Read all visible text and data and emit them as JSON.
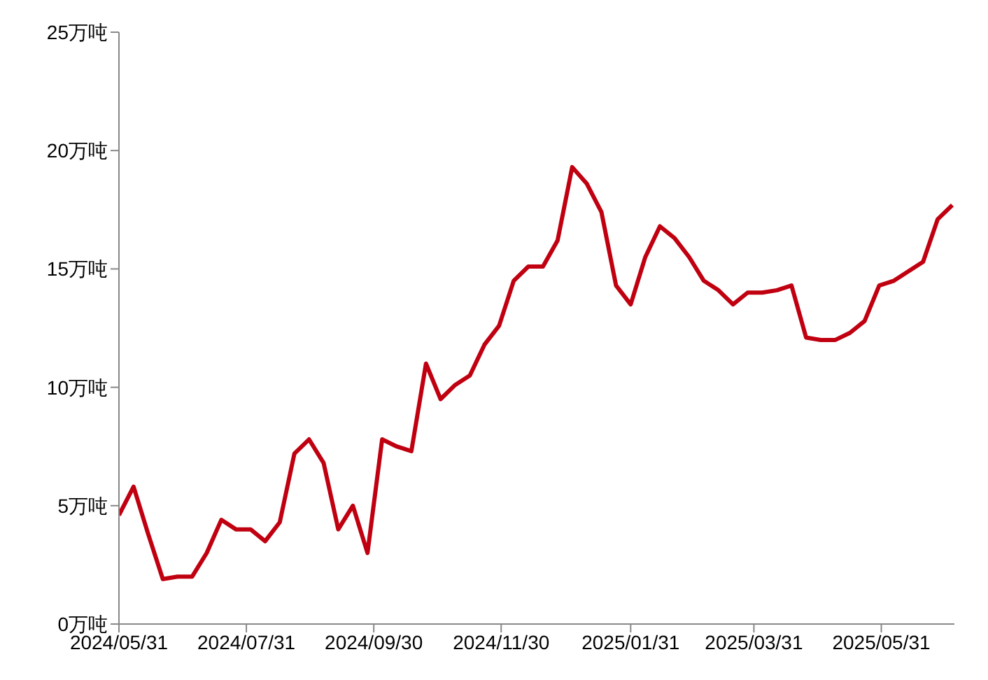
{
  "chart_data": {
    "type": "line",
    "x": [
      "2024-05-31",
      "2024-06-07",
      "2024-06-14",
      "2024-06-21",
      "2024-06-28",
      "2024-07-05",
      "2024-07-12",
      "2024-07-19",
      "2024-07-26",
      "2024-08-02",
      "2024-08-09",
      "2024-08-16",
      "2024-08-23",
      "2024-08-30",
      "2024-09-06",
      "2024-09-13",
      "2024-09-20",
      "2024-09-27",
      "2024-10-04",
      "2024-10-11",
      "2024-10-18",
      "2024-10-25",
      "2024-11-01",
      "2024-11-08",
      "2024-11-15",
      "2024-11-22",
      "2024-11-29",
      "2024-12-06",
      "2024-12-13",
      "2024-12-20",
      "2024-12-27",
      "2025-01-03",
      "2025-01-10",
      "2025-01-17",
      "2025-01-24",
      "2025-01-31",
      "2025-02-07",
      "2025-02-14",
      "2025-02-21",
      "2025-02-28",
      "2025-03-07",
      "2025-03-14",
      "2025-03-21",
      "2025-03-28",
      "2025-04-04",
      "2025-04-11",
      "2025-04-18",
      "2025-04-25",
      "2025-05-02",
      "2025-05-09",
      "2025-05-16",
      "2025-05-23",
      "2025-05-30",
      "2025-06-06",
      "2025-06-13",
      "2025-06-20",
      "2025-06-27",
      "2025-07-04"
    ],
    "series": [
      {
        "color": "#c00010",
        "values": [
          4.6,
          5.8,
          3.8,
          1.9,
          2.0,
          2.0,
          3.0,
          4.4,
          4.0,
          4.0,
          3.5,
          4.3,
          7.2,
          7.8,
          6.8,
          4.0,
          5.0,
          3.0,
          7.8,
          7.5,
          7.3,
          11.0,
          9.5,
          10.1,
          10.5,
          11.8,
          12.6,
          14.5,
          15.1,
          15.1,
          16.2,
          19.3,
          18.6,
          17.4,
          14.3,
          13.5,
          15.5,
          16.8,
          16.3,
          15.5,
          14.5,
          14.1,
          13.5,
          14.0,
          14.0,
          14.1,
          14.3,
          12.1,
          12.0,
          12.0,
          12.3,
          12.8,
          14.3,
          14.5,
          14.9,
          15.3,
          17.1,
          17.7
        ]
      }
    ],
    "xlim": [
      "2024-05-31",
      "2025-07-05"
    ],
    "xticks": [
      {
        "value": "2024-05-31",
        "label": "2024/05/31"
      },
      {
        "value": "2024-07-31",
        "label": "2024/07/31"
      },
      {
        "value": "2024-09-30",
        "label": "2024/09/30"
      },
      {
        "value": "2024-11-30",
        "label": "2024/11/30"
      },
      {
        "value": "2025-01-31",
        "label": "2025/01/31"
      },
      {
        "value": "2025-03-31",
        "label": "2025/03/31"
      },
      {
        "value": "2025-05-31",
        "label": "2025/05/31"
      }
    ],
    "ylim": [
      0,
      25
    ],
    "yticks": [
      {
        "value": 0,
        "label": "0万吨"
      },
      {
        "value": 5,
        "label": "5万吨"
      },
      {
        "value": 10,
        "label": "10万吨"
      },
      {
        "value": 15,
        "label": "15万吨"
      },
      {
        "value": 20,
        "label": "20万吨"
      },
      {
        "value": 25,
        "label": "25万吨"
      }
    ],
    "grid": false,
    "legend": false,
    "marker": "none",
    "line_style": "solid"
  }
}
